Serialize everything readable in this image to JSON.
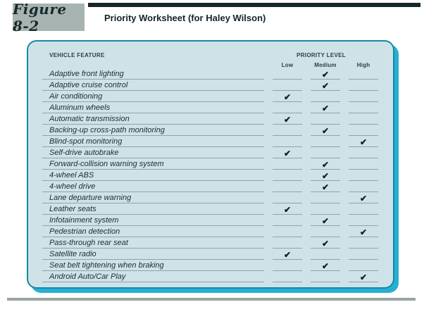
{
  "figure": {
    "label": "Figure 8-2",
    "title": "Priority Worksheet (for Haley Wilson)"
  },
  "worksheet": {
    "feature_header": "VEHICLE FEATURE",
    "priority_header": "PRIORITY LEVEL",
    "levels": [
      "Low",
      "Medium",
      "High"
    ],
    "check_symbol": "✔",
    "rows": [
      {
        "feature": "Adaptive front lighting",
        "priority": "Medium"
      },
      {
        "feature": "Adaptive cruise control",
        "priority": "Medium"
      },
      {
        "feature": "Air conditioning",
        "priority": "Low"
      },
      {
        "feature": "Aluminum wheels",
        "priority": "Medium"
      },
      {
        "feature": "Automatic transmission",
        "priority": "Low"
      },
      {
        "feature": "Backing-up cross-path monitoring",
        "priority": "Medium"
      },
      {
        "feature": "Blind-spot monitoring",
        "priority": "High"
      },
      {
        "feature": "Self-drive autobrake",
        "priority": "Low"
      },
      {
        "feature": "Forward-collision warning system",
        "priority": "Medium"
      },
      {
        "feature": "4-wheel ABS",
        "priority": "Medium"
      },
      {
        "feature": "4-wheel drive",
        "priority": "Medium"
      },
      {
        "feature": "Lane departure warning",
        "priority": "High"
      },
      {
        "feature": "Leather seats",
        "priority": "Low"
      },
      {
        "feature": "Infotainment system",
        "priority": "Medium"
      },
      {
        "feature": "Pedestrian detection",
        "priority": "High"
      },
      {
        "feature": "Pass-through rear seat",
        "priority": "Medium"
      },
      {
        "feature": "Satellite radio",
        "priority": "Low"
      },
      {
        "feature": "Seat belt tightening when braking",
        "priority": "Medium"
      },
      {
        "feature": "Android Auto/Car Play",
        "priority": "High"
      }
    ]
  },
  "colors": {
    "panel_bg": "#cfe2e8",
    "panel_border": "#1589a8",
    "panel_shadow": "#27afd2",
    "figure_box_bg": "#a7b4b1",
    "top_bar": "#16262b",
    "header_text": "#2e3d44",
    "ink": "#1e2b33",
    "rule_line": "#8fa3ac",
    "bottom_rule": "#9aa4a1"
  }
}
